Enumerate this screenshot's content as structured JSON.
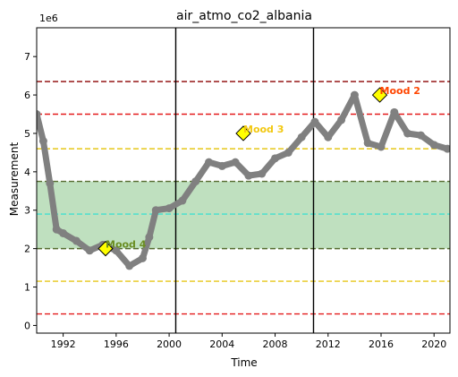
{
  "chart_data": {
    "type": "line",
    "title": "air_atmo_co2_albania",
    "xlabel": "Time",
    "ylabel": "Measurement",
    "y_multiplier_label": "1e6",
    "xlim": [
      1990,
      2021.2
    ],
    "ylim": [
      -0.2,
      7.75
    ],
    "x_ticks": [
      1992,
      1996,
      2000,
      2004,
      2008,
      2012,
      2016,
      2020
    ],
    "y_ticks": [
      0,
      1,
      2,
      3,
      4,
      5,
      6,
      7
    ],
    "grid": false,
    "series": [
      {
        "color": "#808080",
        "x": [
          1990.0,
          1990.5,
          1991.0,
          1991.5,
          1992.0,
          1993.0,
          1994.0,
          1995.0,
          1996.0,
          1997.0,
          1998.0,
          1998.5,
          1999.0,
          2000.0,
          2001.0,
          2002.0,
          2003.0,
          2004.0,
          2005.0,
          2006.0,
          2007.0,
          2008.0,
          2009.0,
          2010.0,
          2011.0,
          2012.0,
          2013.0,
          2014.0,
          2015.0,
          2016.0,
          2017.0,
          2018.0,
          2019.0,
          2020.0,
          2021.0
        ],
        "y": [
          5.5,
          4.8,
          3.7,
          2.5,
          2.4,
          2.2,
          1.95,
          2.1,
          1.95,
          1.55,
          1.75,
          2.3,
          3.0,
          3.05,
          3.25,
          3.75,
          4.25,
          4.15,
          4.25,
          3.9,
          3.95,
          4.35,
          4.5,
          4.9,
          5.3,
          4.9,
          5.35,
          6.0,
          4.75,
          4.65,
          5.55,
          5.0,
          4.95,
          4.7,
          4.6
        ]
      }
    ],
    "vertical_lines": [
      2000.5,
      2010.9
    ],
    "horizontal_lines": [
      {
        "y": 6.35,
        "color": "#8b0000",
        "style": "dashed"
      },
      {
        "y": 5.5,
        "color": "#e41a1c",
        "style": "dashed"
      },
      {
        "y": 4.6,
        "color": "#e6c619",
        "style": "dashed"
      },
      {
        "y": 3.75,
        "color": "#556b2f",
        "style": "dashed"
      },
      {
        "y": 2.9,
        "color": "#40e0d0",
        "style": "dashed"
      },
      {
        "y": 2.0,
        "color": "#556b2f",
        "style": "dashed"
      },
      {
        "y": 1.15,
        "color": "#e6c619",
        "style": "dashed"
      },
      {
        "y": 0.3,
        "color": "#e41a1c",
        "style": "dashed"
      }
    ],
    "band": {
      "y0": 2.0,
      "y1": 3.75,
      "color": "#a9d6a9"
    },
    "annotations": [
      {
        "label": "Mood 4",
        "x": 1995.2,
        "y": 2.0,
        "color": "#6b8e23"
      },
      {
        "label": "Mood 3",
        "x": 2005.6,
        "y": 5.0,
        "color": "#f2c811"
      },
      {
        "label": "Mood 2",
        "x": 2015.9,
        "y": 6.0,
        "color": "#ff4500"
      }
    ]
  }
}
